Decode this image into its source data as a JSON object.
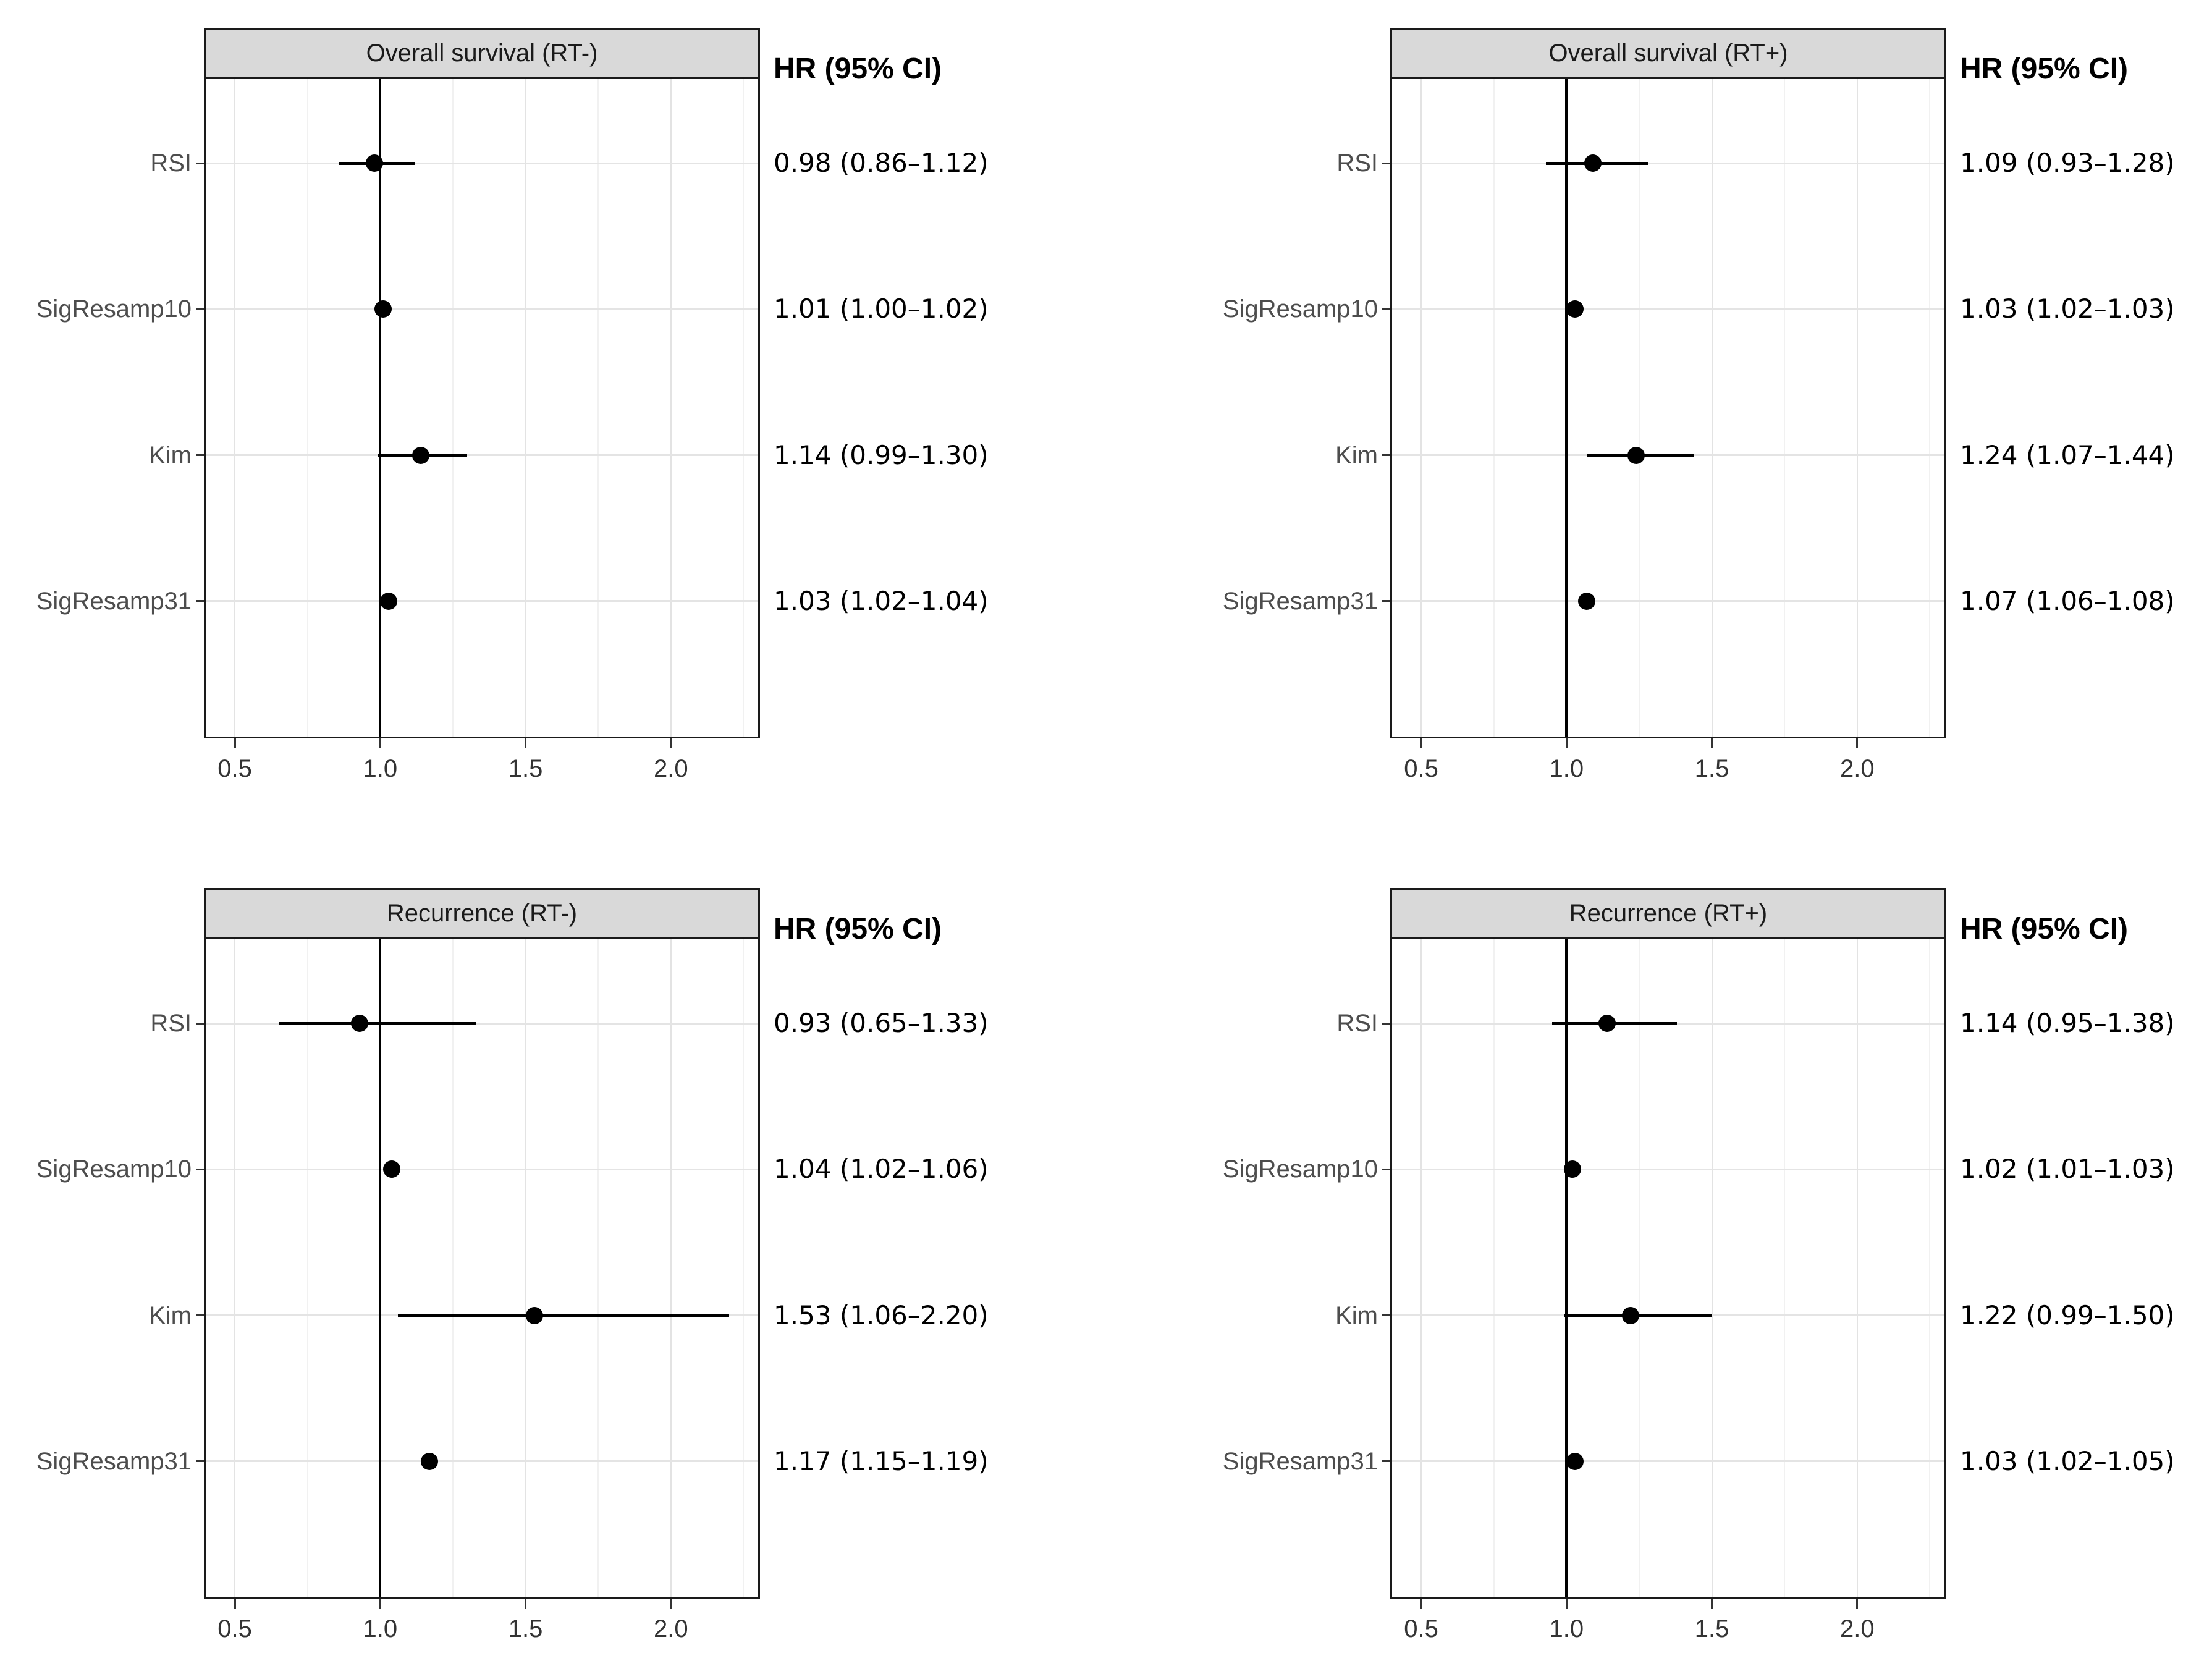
{
  "figure": {
    "hr_header": "HR (95% CI)",
    "x_tick_labels": [
      "0.5",
      "1.0",
      "1.5",
      "2.0"
    ],
    "colors": {
      "header_bg": "#d9d9d9",
      "panel_border": "#1a1a1a",
      "point": "#000000",
      "reference_line": "#000000",
      "grid_major": "#e3e3e3",
      "grid_minor": "#f1f1f1",
      "row_label_text": "#4d4d4d",
      "value_text": "#000000"
    }
  },
  "chart_data": [
    {
      "type": "scatter",
      "subtype": "forest-plot",
      "title": "Overall survival (RT-)",
      "value_header": "HR (95% CI)",
      "x_axis": {
        "ticks": [
          0.5,
          1.0,
          1.5,
          2.0
        ],
        "range": [
          0.4,
          2.3
        ],
        "reference_line": 1.0,
        "grid": true
      },
      "rows": [
        {
          "label": "RSI",
          "hr": 0.98,
          "ci_low": 0.86,
          "ci_high": 1.12,
          "text": "0.98 (0.86–1.12)"
        },
        {
          "label": "SigResamp10",
          "hr": 1.01,
          "ci_low": 1.0,
          "ci_high": 1.02,
          "text": "1.01 (1.00–1.02)"
        },
        {
          "label": "Kim",
          "hr": 1.14,
          "ci_low": 0.99,
          "ci_high": 1.3,
          "text": "1.14 (0.99–1.30)"
        },
        {
          "label": "SigResamp31",
          "hr": 1.03,
          "ci_low": 1.02,
          "ci_high": 1.04,
          "text": "1.03 (1.02–1.04)"
        }
      ]
    },
    {
      "type": "scatter",
      "subtype": "forest-plot",
      "title": "Overall survival (RT+)",
      "value_header": "HR (95% CI)",
      "x_axis": {
        "ticks": [
          0.5,
          1.0,
          1.5,
          2.0
        ],
        "range": [
          0.4,
          2.3
        ],
        "reference_line": 1.0,
        "grid": true
      },
      "rows": [
        {
          "label": "RSI",
          "hr": 1.09,
          "ci_low": 0.93,
          "ci_high": 1.28,
          "text": "1.09 (0.93–1.28)"
        },
        {
          "label": "SigResamp10",
          "hr": 1.03,
          "ci_low": 1.02,
          "ci_high": 1.03,
          "text": "1.03 (1.02–1.03)"
        },
        {
          "label": "Kim",
          "hr": 1.24,
          "ci_low": 1.07,
          "ci_high": 1.44,
          "text": "1.24 (1.07–1.44)"
        },
        {
          "label": "SigResamp31",
          "hr": 1.07,
          "ci_low": 1.06,
          "ci_high": 1.08,
          "text": "1.07 (1.06–1.08)"
        }
      ]
    },
    {
      "type": "scatter",
      "subtype": "forest-plot",
      "title": "Recurrence (RT-)",
      "value_header": "HR (95% CI)",
      "x_axis": {
        "ticks": [
          0.5,
          1.0,
          1.5,
          2.0
        ],
        "range": [
          0.4,
          2.3
        ],
        "reference_line": 1.0,
        "grid": true
      },
      "rows": [
        {
          "label": "RSI",
          "hr": 0.93,
          "ci_low": 0.65,
          "ci_high": 1.33,
          "text": "0.93 (0.65–1.33)"
        },
        {
          "label": "SigResamp10",
          "hr": 1.04,
          "ci_low": 1.02,
          "ci_high": 1.06,
          "text": "1.04 (1.02–1.06)"
        },
        {
          "label": "Kim",
          "hr": 1.53,
          "ci_low": 1.06,
          "ci_high": 2.2,
          "text": "1.53 (1.06–2.20)"
        },
        {
          "label": "SigResamp31",
          "hr": 1.17,
          "ci_low": 1.15,
          "ci_high": 1.19,
          "text": "1.17 (1.15–1.19)"
        }
      ]
    },
    {
      "type": "scatter",
      "subtype": "forest-plot",
      "title": "Recurrence (RT+)",
      "value_header": "HR (95% CI)",
      "x_axis": {
        "ticks": [
          0.5,
          1.0,
          1.5,
          2.0
        ],
        "range": [
          0.4,
          2.3
        ],
        "reference_line": 1.0,
        "grid": true
      },
      "rows": [
        {
          "label": "RSI",
          "hr": 1.14,
          "ci_low": 0.95,
          "ci_high": 1.38,
          "text": "1.14 (0.95–1.38)"
        },
        {
          "label": "SigResamp10",
          "hr": 1.02,
          "ci_low": 1.01,
          "ci_high": 1.03,
          "text": "1.02 (1.01–1.03)"
        },
        {
          "label": "Kim",
          "hr": 1.22,
          "ci_low": 0.99,
          "ci_high": 1.5,
          "text": "1.22 (0.99–1.50)"
        },
        {
          "label": "SigResamp31",
          "hr": 1.03,
          "ci_low": 1.02,
          "ci_high": 1.05,
          "text": "1.03 (1.02–1.05)"
        }
      ]
    }
  ]
}
